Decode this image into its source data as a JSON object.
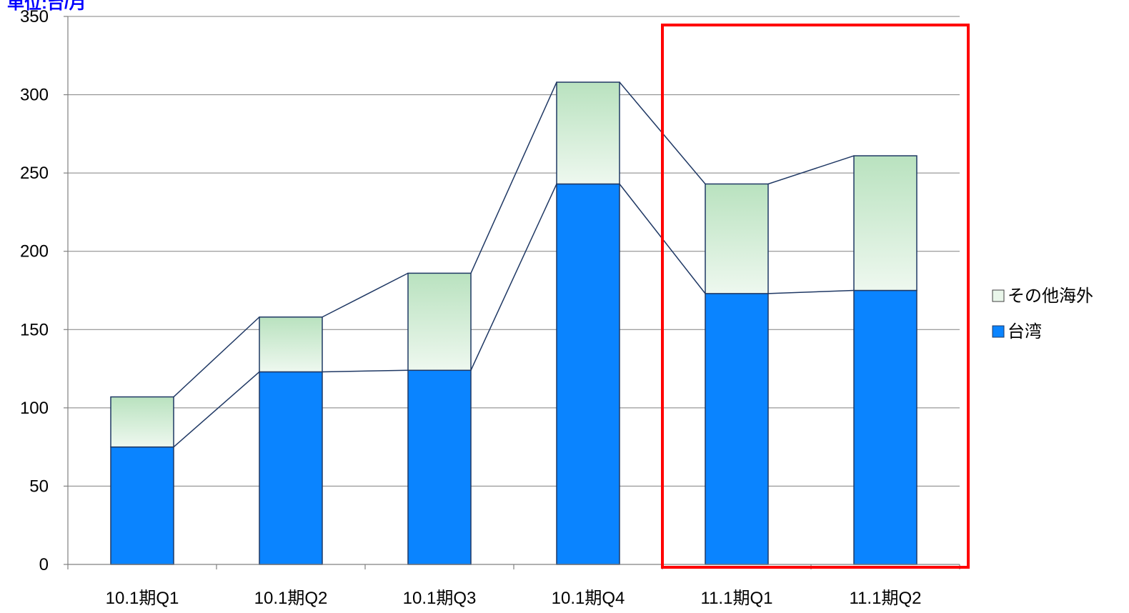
{
  "chart_data": {
    "type": "bar",
    "stacked": true,
    "unit_label": "単位:台/月",
    "categories": [
      "10.1期Q1",
      "10.1期Q2",
      "10.1期Q3",
      "10.1期Q4",
      "11.1期Q1",
      "11.1期Q2"
    ],
    "series": [
      {
        "name": "台湾",
        "values": [
          75,
          123,
          124,
          243,
          173,
          175
        ],
        "color": "#0a84ff"
      },
      {
        "name": "その他海外",
        "values": [
          32,
          35,
          62,
          65,
          70,
          86
        ],
        "color": "#c3e7c6"
      }
    ],
    "ylim": [
      0,
      350
    ],
    "yticks": [
      0,
      50,
      100,
      150,
      200,
      250,
      300,
      350
    ],
    "grid": true,
    "legend_position": "right",
    "series_lines": true,
    "highlight": {
      "categories": [
        "11.1期Q1",
        "11.1期Q2"
      ],
      "color": "#ff0000"
    },
    "colors": {
      "unit_label": "#0000ff",
      "outline": "#1f3864",
      "grid": "#808080"
    }
  }
}
